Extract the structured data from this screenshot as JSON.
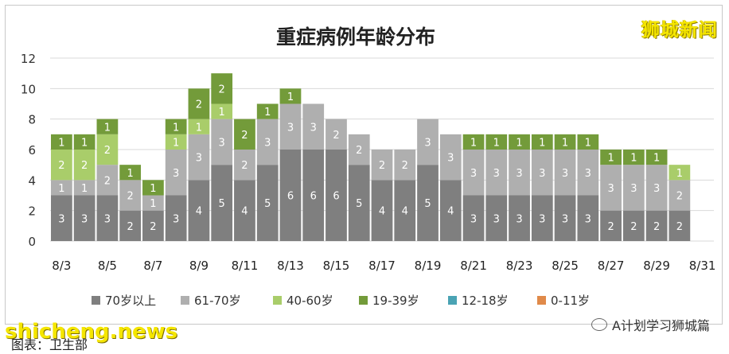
{
  "chart_data": {
    "type": "bar",
    "stacked": true,
    "title": "重症病例年龄分布",
    "ylim": [
      0,
      12
    ],
    "yticks": [
      0,
      2,
      4,
      6,
      8,
      10,
      12
    ],
    "grid": true,
    "legend_position": "bottom",
    "categories": [
      "8/3",
      "8/4",
      "8/5",
      "8/6",
      "8/7",
      "8/8",
      "8/9",
      "8/10",
      "8/11",
      "8/12",
      "8/13",
      "8/14",
      "8/15",
      "8/16",
      "8/17",
      "8/18",
      "8/19",
      "8/20",
      "8/21",
      "8/22",
      "8/23",
      "8/24",
      "8/25",
      "8/26",
      "8/27",
      "8/28",
      "8/29",
      "8/30",
      "8/31"
    ],
    "xtick_labels": [
      "8/3",
      "8/5",
      "8/7",
      "8/9",
      "8/11",
      "8/13",
      "8/15",
      "8/17",
      "8/19",
      "8/21",
      "8/23",
      "8/25",
      "8/27",
      "8/29",
      "8/31"
    ],
    "series": [
      {
        "name": "70岁以上",
        "color": "#7f7f7f",
        "label_color": "#ffffff",
        "values": [
          3,
          3,
          3,
          2,
          2,
          3,
          4,
          5,
          4,
          5,
          6,
          6,
          6,
          5,
          4,
          4,
          5,
          4,
          3,
          3,
          3,
          3,
          3,
          3,
          2,
          2,
          2,
          2,
          0
        ]
      },
      {
        "name": "61-70岁",
        "color": "#afafaf",
        "label_color": "#ffffff",
        "values": [
          1,
          1,
          2,
          2,
          1,
          3,
          3,
          3,
          2,
          3,
          3,
          3,
          2,
          2,
          2,
          2,
          3,
          3,
          3,
          3,
          3,
          3,
          3,
          3,
          3,
          3,
          3,
          2,
          0
        ]
      },
      {
        "name": "40-60岁",
        "color": "#a9cd6a",
        "label_color": "#ffffff",
        "values": [
          2,
          2,
          2,
          0,
          0,
          1,
          1,
          1,
          0,
          0,
          0,
          0,
          0,
          0,
          0,
          0,
          0,
          0,
          0,
          0,
          0,
          0,
          0,
          0,
          0,
          0,
          0,
          1,
          0
        ]
      },
      {
        "name": "19-39岁",
        "color": "#739b3a",
        "label_color": "#ffffff",
        "values": [
          1,
          1,
          1,
          1,
          1,
          1,
          2,
          2,
          2,
          1,
          1,
          0,
          0,
          0,
          0,
          0,
          0,
          0,
          1,
          1,
          1,
          1,
          1,
          1,
          1,
          1,
          1,
          0,
          0
        ]
      },
      {
        "name": "12-18岁",
        "color": "#4aa3b4",
        "label_color": "#ffffff",
        "values": [
          0,
          0,
          0,
          0,
          0,
          0,
          0,
          0,
          0,
          0,
          0,
          0,
          0,
          0,
          0,
          0,
          0,
          0,
          0,
          0,
          0,
          0,
          0,
          0,
          0,
          0,
          0,
          0,
          0
        ]
      },
      {
        "name": "0-11岁",
        "color": "#e08a4a",
        "label_color": "#ffffff",
        "values": [
          0,
          0,
          0,
          0,
          0,
          0,
          0,
          0,
          0,
          0,
          0,
          0,
          0,
          0,
          0,
          0,
          0,
          0,
          0,
          0,
          0,
          0,
          0,
          0,
          0,
          0,
          0,
          0,
          0
        ]
      }
    ]
  },
  "watermarks": {
    "top_right": "狮城新闻",
    "bottom_left": "shicheng.news"
  },
  "caption": "图表：卫生部",
  "wechat_tag": "A计划学习狮城篇"
}
